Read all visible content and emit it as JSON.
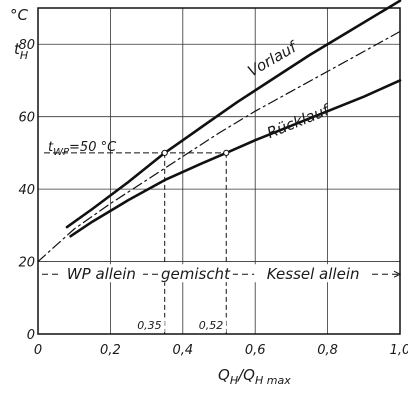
{
  "chart_data": {
    "type": "line",
    "xlabel": "Q_H/Q_H max",
    "xlabel_main": "Q",
    "xlabel_sub1": "H",
    "xlabel_sep": "/Q",
    "xlabel_sub2": "H max",
    "ylabel": "t_H",
    "ylabel_main": "t",
    "ylabel_sub": "H",
    "yunit": "°C",
    "xlim": [
      0,
      1.0
    ],
    "ylim": [
      0,
      90
    ],
    "xticks": [
      {
        "value": 0,
        "label": "0"
      },
      {
        "value": 0.2,
        "label": "0,2"
      },
      {
        "value": 0.4,
        "label": "0,4"
      },
      {
        "value": 0.6,
        "label": "0,6"
      },
      {
        "value": 0.8,
        "label": "0,8"
      },
      {
        "value": 1.0,
        "label": "1,0"
      }
    ],
    "yticks": [
      {
        "value": 0,
        "label": "0"
      },
      {
        "value": 20,
        "label": "20"
      },
      {
        "value": 40,
        "label": "40"
      },
      {
        "value": 60,
        "label": "60"
      },
      {
        "value": 80,
        "label": "80"
      }
    ],
    "grid": true,
    "series": [
      {
        "name": "Vorlauf",
        "style": "solid-thick",
        "x": [
          0.08,
          0.15,
          0.25,
          0.35,
          0.45,
          0.55,
          0.65,
          0.75,
          0.85,
          0.95,
          1.0
        ],
        "y": [
          29.5,
          34.5,
          42.0,
          50.0,
          57.0,
          64.0,
          70.5,
          77.0,
          83.0,
          89.0,
          92.0
        ]
      },
      {
        "name": "Rücklauf",
        "style": "solid-thick",
        "x": [
          0.09,
          0.15,
          0.25,
          0.35,
          0.45,
          0.52,
          0.6,
          0.7,
          0.8,
          0.9,
          1.0
        ],
        "y": [
          27.0,
          31.0,
          37.0,
          42.5,
          47.0,
          50.0,
          53.5,
          57.5,
          61.5,
          65.5,
          70.0
        ]
      },
      {
        "name": "",
        "style": "dash-dot",
        "x": [
          0.0,
          0.1,
          0.2,
          0.3,
          0.4,
          0.5,
          0.6,
          0.7,
          0.8,
          0.9,
          1.0
        ],
        "y": [
          20.0,
          29.0,
          36.0,
          42.5,
          49.0,
          55.5,
          61.5,
          67.0,
          72.5,
          78.0,
          83.5
        ]
      }
    ],
    "annotations": {
      "twp_label_main": "t",
      "twp_label_sub": "WP",
      "twp_label_rest": "=50 °C",
      "twp_value": 50,
      "points": [
        {
          "x": 0.35,
          "y": 50,
          "label": "0,35"
        },
        {
          "x": 0.52,
          "y": 50,
          "label": "0,52"
        }
      ],
      "band_y": 16.5,
      "regions": [
        {
          "label": "WP allein",
          "x_from": 0,
          "x_to": 0.35
        },
        {
          "label": "gemischt",
          "x_from": 0.35,
          "x_to": 0.52
        },
        {
          "label": "Kessel allein",
          "x_from": 0.52,
          "x_to": 1.0
        }
      ]
    }
  }
}
